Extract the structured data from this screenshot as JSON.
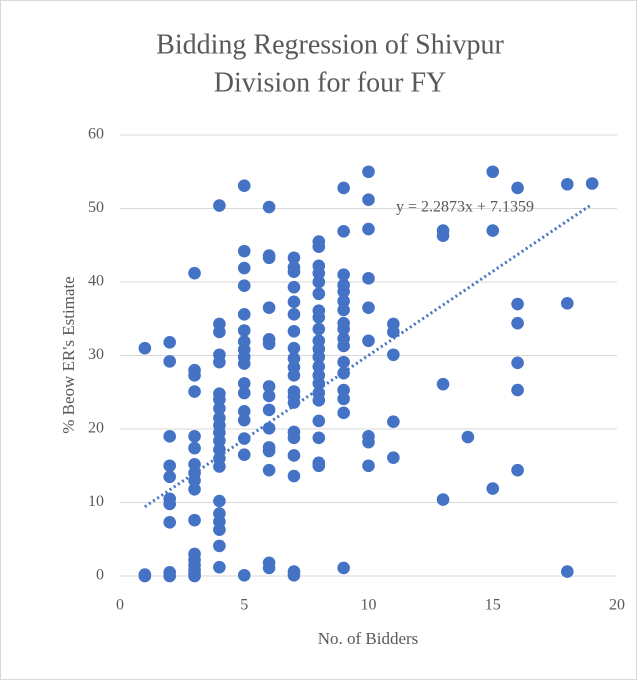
{
  "chart_data": {
    "type": "scatter",
    "title": [
      "Bidding Regression of Shivpur",
      "Division for four FY"
    ],
    "x_label": "No. of Bidders",
    "y_label": "% Beow ER's Estimate",
    "color": "#4472c4",
    "xlim": [
      0,
      20
    ],
    "xticks": [
      0,
      5,
      10,
      15,
      20
    ],
    "ylim": [
      0,
      60
    ],
    "yticks": [
      0,
      10,
      20,
      30,
      40,
      50,
      60
    ],
    "grid": true,
    "x": [
      1,
      1,
      1,
      2,
      2,
      2,
      2,
      2,
      2,
      2,
      2,
      2,
      2,
      3,
      3,
      3,
      3,
      3,
      3,
      3,
      3,
      3,
      3,
      3,
      3,
      3,
      3,
      3,
      3,
      3,
      4,
      4,
      4,
      4,
      4,
      4,
      4,
      4,
      4,
      4,
      4,
      4,
      4,
      4,
      4,
      4,
      4,
      4,
      4,
      4,
      4,
      5,
      5,
      5,
      5,
      5,
      5,
      5,
      5,
      5,
      5,
      5,
      5,
      5,
      5,
      5,
      5,
      5,
      6,
      6,
      6,
      6,
      6,
      6,
      6,
      6,
      6,
      6,
      6,
      6,
      6,
      6,
      6,
      7,
      7,
      7,
      7,
      7,
      7,
      7,
      7,
      7,
      7,
      7,
      7,
      7,
      7,
      7,
      7,
      7,
      7,
      7,
      7,
      8,
      8,
      8,
      8,
      8,
      8,
      8,
      8,
      8,
      8,
      8,
      8,
      8,
      8,
      8,
      8,
      8,
      8,
      8,
      8,
      8,
      9,
      9,
      9,
      9,
      9,
      9,
      9,
      9,
      9,
      9,
      9,
      9,
      9,
      9,
      9,
      9,
      9,
      10,
      10,
      10,
      10,
      10,
      10,
      10,
      10,
      10,
      11,
      11,
      11,
      11,
      11,
      13,
      13,
      13,
      13,
      14,
      15,
      15,
      15,
      16,
      16,
      16,
      16,
      16,
      16,
      18,
      18,
      18,
      19
    ],
    "values": [
      0,
      0.2,
      31,
      0,
      0.5,
      7.3,
      9.8,
      10.5,
      13.5,
      15,
      19,
      29.2,
      31.8,
      0,
      0.3,
      0.8,
      1.5,
      2.2,
      3,
      7.6,
      11.8,
      13,
      14,
      15.2,
      17.4,
      19,
      25.1,
      27.3,
      28,
      41.2,
      1.2,
      4.1,
      6.3,
      7.4,
      8.5,
      10.2,
      14.9,
      16,
      17.2,
      18.4,
      19.5,
      20.5,
      21.5,
      22.8,
      24,
      24.8,
      29.1,
      30.1,
      33.2,
      34.3,
      50.4,
      0.1,
      16.5,
      18.7,
      21.2,
      22.4,
      24.9,
      26.2,
      28.9,
      29.8,
      30.8,
      31.9,
      33.4,
      35.6,
      39.5,
      41.9,
      44.2,
      53.1,
      1.1,
      1.8,
      14.4,
      17,
      17.5,
      20.1,
      22.6,
      24.5,
      25.8,
      31.6,
      32.2,
      36.5,
      43.3,
      43.6,
      50.2,
      0.1,
      0.6,
      13.6,
      16.4,
      18.8,
      19.6,
      23.6,
      24.4,
      25.1,
      27.3,
      28.4,
      29.6,
      31,
      33.3,
      35.6,
      37.3,
      39.3,
      41.4,
      42,
      43.3,
      15,
      15.4,
      18.8,
      21.1,
      23.9,
      24.9,
      26.2,
      27.3,
      28.5,
      29.8,
      30.9,
      32,
      33.6,
      35.2,
      36.1,
      38.4,
      40,
      41.2,
      42.2,
      44.8,
      45.5,
      1.1,
      22.2,
      24.1,
      25.3,
      27.6,
      29.1,
      31.3,
      32.3,
      33.6,
      34.4,
      36.2,
      37.4,
      38.7,
      39.6,
      41,
      46.9,
      52.8,
      15,
      18.2,
      19,
      32,
      36.5,
      40.5,
      47.2,
      51.2,
      55,
      16.1,
      21,
      30.1,
      33.2,
      34.3,
      10.4,
      26.1,
      46.3,
      47,
      18.9,
      11.9,
      47,
      55,
      14.4,
      25.3,
      29,
      34.4,
      37,
      52.8,
      0.6,
      37.1,
      53.3,
      53.4
    ],
    "trendline": {
      "label": "y = 2.2873x + 7.1359",
      "slope": 2.2873,
      "intercept": 7.1359,
      "x_range": [
        1,
        19
      ]
    }
  }
}
